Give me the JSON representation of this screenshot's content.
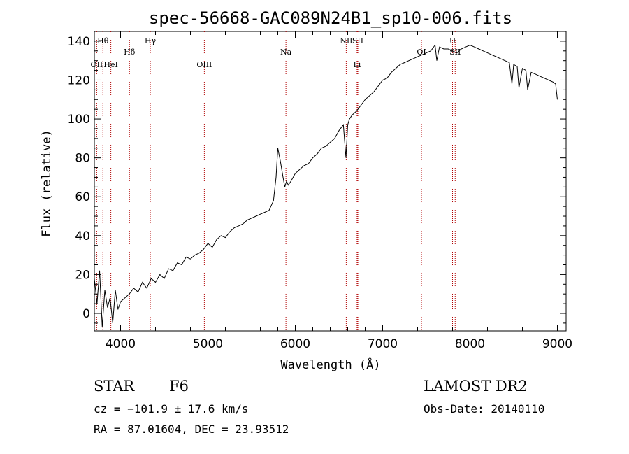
{
  "chart_data": {
    "type": "line",
    "title": "spec-56668-GAC089N24B1_sp10-006.fits",
    "xlabel": "Wavelength (Å)",
    "ylabel": "Flux (relative)",
    "xlim": [
      3700,
      9100
    ],
    "ylim": [
      -9,
      145
    ],
    "xticks": [
      4000,
      5000,
      6000,
      7000,
      8000,
      9000
    ],
    "yticks": [
      0,
      20,
      40,
      60,
      80,
      100,
      120,
      140
    ],
    "spectral_lines": [
      {
        "label": "Hθ",
        "wavelength": 3798,
        "row": "top"
      },
      {
        "label": "OII",
        "wavelength": 3727,
        "row": "low"
      },
      {
        "label": "HeI",
        "wavelength": 3889,
        "row": "low"
      },
      {
        "label": "Hδ",
        "wavelength": 4102,
        "row": "mid"
      },
      {
        "label": "Hγ",
        "wavelength": 4340,
        "row": "top"
      },
      {
        "label": "OIII",
        "wavelength": 4959,
        "row": "low"
      },
      {
        "label": "Na",
        "wavelength": 5893,
        "row": "mid"
      },
      {
        "label": "NII",
        "wavelength": 6583,
        "row": "top"
      },
      {
        "label": "SII",
        "wavelength": 6716,
        "row": "top"
      },
      {
        "label": "Li",
        "wavelength": 6707,
        "row": "low"
      },
      {
        "label": "OI",
        "wavelength": 7444,
        "row": "mid"
      },
      {
        "label": "U",
        "wavelength": 7800,
        "row": "top"
      },
      {
        "label": "SII",
        "wavelength": 7830,
        "row": "mid"
      }
    ],
    "series": [
      {
        "x": [
          3700,
          3730,
          3760,
          3790,
          3820,
          3850,
          3880,
          3910,
          3940,
          3970,
          4000,
          4050,
          4100,
          4150,
          4200,
          4250,
          4300,
          4350,
          4400,
          4450,
          4500,
          4550,
          4600,
          4650,
          4700,
          4750,
          4800,
          4850,
          4900,
          4950,
          5000,
          5050,
          5100,
          5150,
          5200,
          5250,
          5300,
          5350,
          5400,
          5450,
          5500,
          5550,
          5600,
          5650,
          5700,
          5750,
          5780,
          5800,
          5830,
          5860,
          5880,
          5900,
          5920,
          5950,
          6000,
          6050,
          6100,
          6150,
          6200,
          6250,
          6300,
          6350,
          6400,
          6450,
          6500,
          6550,
          6580,
          6600,
          6620,
          6650,
          6700,
          6750,
          6800,
          6850,
          6900,
          6950,
          7000,
          7050,
          7100,
          7150,
          7200,
          7250,
          7300,
          7350,
          7400,
          7450,
          7500,
          7550,
          7600,
          7620,
          7650,
          7700,
          7750,
          7800,
          7850,
          7900,
          7950,
          8000,
          8050,
          8100,
          8150,
          8200,
          8250,
          8300,
          8350,
          8400,
          8450,
          8480,
          8500,
          8540,
          8560,
          8600,
          8640,
          8660,
          8700,
          8750,
          8800,
          8850,
          8900,
          8950,
          8980,
          9000
        ],
        "y": [
          18,
          5,
          22,
          -7,
          12,
          3,
          8,
          -5,
          12,
          2,
          6,
          8,
          10,
          13,
          11,
          16,
          13,
          18,
          16,
          20,
          18,
          23,
          22,
          26,
          25,
          29,
          28,
          30,
          31,
          33,
          36,
          34,
          38,
          40,
          39,
          42,
          44,
          45,
          46,
          48,
          49,
          50,
          51,
          52,
          53,
          58,
          70,
          85,
          78,
          70,
          65,
          68,
          66,
          68,
          72,
          74,
          76,
          77,
          80,
          82,
          85,
          86,
          88,
          90,
          94,
          97,
          80,
          97,
          100,
          102,
          104,
          107,
          110,
          112,
          114,
          117,
          120,
          121,
          124,
          126,
          128,
          129,
          130,
          131,
          132,
          133,
          134,
          135,
          138,
          130,
          137,
          136,
          136,
          135,
          134,
          136,
          137,
          138,
          137,
          136,
          135,
          134,
          133,
          132,
          131,
          130,
          129,
          118,
          128,
          127,
          116,
          126,
          125,
          115,
          124,
          123,
          122,
          121,
          120,
          119,
          118,
          110
        ]
      }
    ]
  },
  "info": {
    "class_label": "STAR",
    "subclass": "F6",
    "survey": "LAMOST DR2",
    "redshift": "cz = −101.9 ± 17.6 km/s",
    "obs_date": "Obs-Date: 20140110",
    "coords": "RA =  87.01604, DEC =  23.93512"
  }
}
